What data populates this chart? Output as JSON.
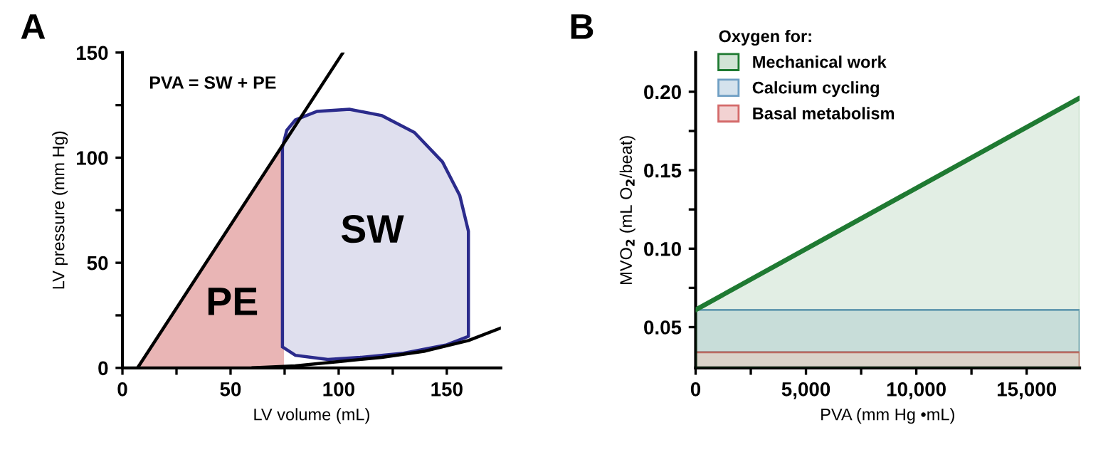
{
  "chart_data": [
    {
      "type": "line",
      "xlabel": "LV volume (mL)",
      "ylabel": "LV pressure (mm Hg)",
      "annotations": [
        "A",
        "PVA = SW + PE",
        "PE",
        "SW"
      ],
      "xlim": [
        0,
        175
      ],
      "xticks": [
        0,
        {
          "value": 25,
          "label": null
        },
        50,
        {
          "value": 75,
          "label": null
        },
        100,
        {
          "value": 125,
          "label": null
        },
        150
      ],
      "ylim": [
        0,
        150
      ],
      "yticks": [
        0,
        {
          "value": 25,
          "label": null
        },
        50,
        {
          "value": 75,
          "label": null
        },
        100,
        {
          "value": 125,
          "label": null
        },
        150
      ],
      "series": [
        {
          "type": "area",
          "color": "#e9b5b5",
          "x": [
            7,
            74,
            74
          ],
          "values": [
            0,
            105,
            0
          ]
        },
        {
          "type": "area",
          "color": "#2b2b8c",
          "x": [
            74,
            76,
            80,
            90,
            105,
            120,
            135,
            148,
            156,
            160,
            160,
            150,
            130,
            110,
            95,
            80,
            74
          ],
          "values": [
            105,
            113,
            118,
            122,
            123,
            120,
            112,
            98,
            82,
            65,
            15,
            11,
            7,
            5,
            4,
            6,
            10
          ]
        },
        {
          "color": "#000000",
          "x": [
            7,
            102
          ],
          "values": [
            0,
            150
          ]
        },
        {
          "color": "#000000",
          "x": [
            60,
            80,
            100,
            120,
            140,
            160,
            175
          ],
          "values": [
            0,
            1,
            3,
            5,
            8,
            13,
            19
          ]
        }
      ]
    },
    {
      "type": "line",
      "xlabel": "PVA (mm Hg •mL)",
      "ylabel": "MVO$_{2}$ (mL O$_{2}$/beat)",
      "legend_title": "Oxygen for:",
      "legend": "top left",
      "annotations": [
        "B"
      ],
      "xlim": [
        0,
        17400
      ],
      "xticks": [
        0,
        {
          "value": 2500,
          "label": null
        },
        {
          "value": 5000,
          "label": "5,000"
        },
        {
          "value": 7500,
          "label": null
        },
        {
          "value": 10000,
          "label": "10,000"
        },
        {
          "value": 12500,
          "label": null
        },
        {
          "value": 15000,
          "label": "15,000"
        }
      ],
      "ylim": [
        0.024,
        0.225
      ],
      "yticks": [
        {
          "value": 0.05,
          "label": "0.05"
        },
        {
          "value": 0.075,
          "label": null
        },
        {
          "value": 0.1,
          "label": "0.10"
        },
        {
          "value": 0.125,
          "label": null
        },
        {
          "value": 0.15,
          "label": "0.15"
        },
        {
          "value": 0.175,
          "label": null
        },
        {
          "value": 0.2,
          "label": "0.20"
        }
      ],
      "series": [
        {
          "type": "area",
          "name": "Mechanical work",
          "color": "#1f7a32",
          "x": [
            0,
            17400
          ],
          "values": [
            0.061,
            0.196
          ]
        }
      ],
      "bands": [
        {
          "axis": "y",
          "from": 0.034,
          "to": 0.061,
          "label": "Calcium cycling",
          "color": "#6f9fc4"
        },
        {
          "axis": "y",
          "from": 0.024,
          "to": 0.034,
          "label": "Basal metabolism",
          "color": "#d46a6a"
        }
      ]
    }
  ]
}
